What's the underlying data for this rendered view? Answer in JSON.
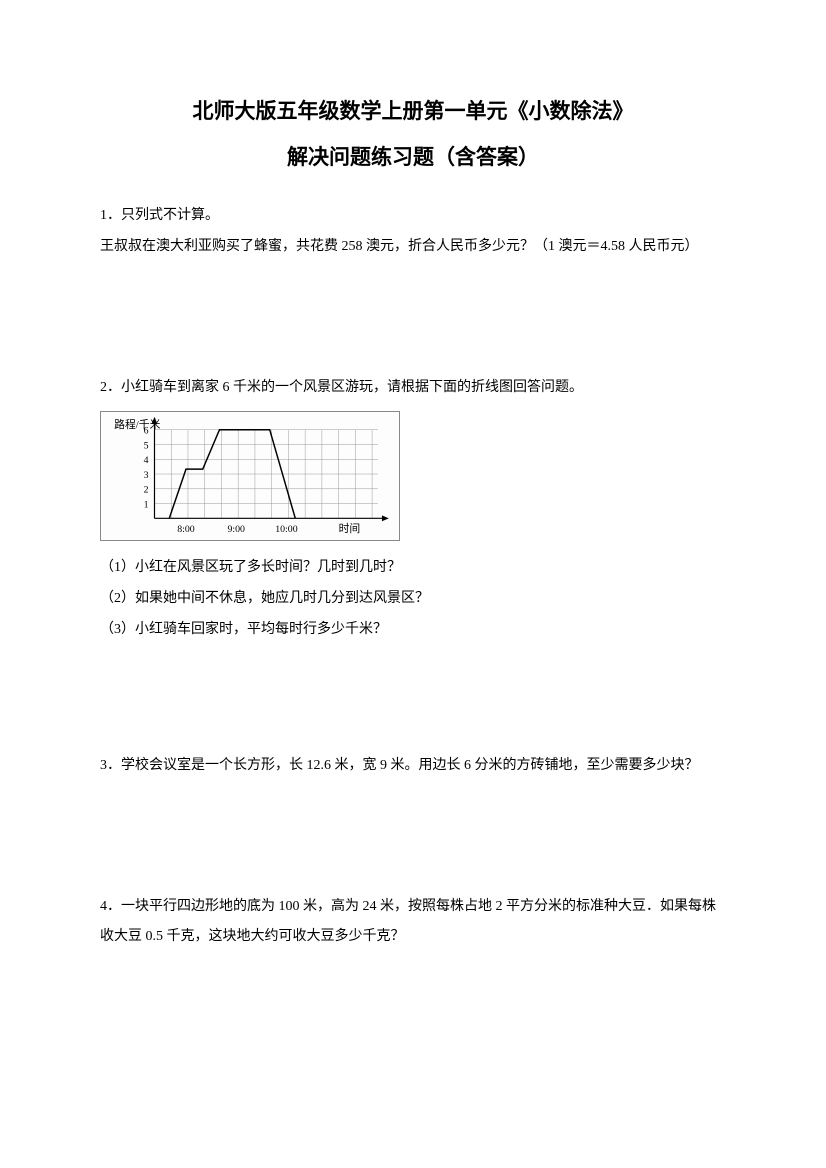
{
  "title": {
    "line1": "北师大版五年级数学上册第一单元《小数除法》",
    "line2": "解决问题练习题（含答案）"
  },
  "q1": {
    "header": "1．只列式不计算。",
    "body": "王叔叔在澳大利亚购买了蜂蜜，共花费 258 澳元，折合人民币多少元？（1 澳元＝4.58 人民币元）"
  },
  "q2": {
    "header": "2．小红骑车到离家 6 千米的一个风景区游玩，请根据下面的折线图回答问题。",
    "sub1": "（1）小红在风景区玩了多长时间？几时到几时？",
    "sub2": "（2）如果她中间不休息，她应几时几分到达风景区？",
    "sub3": "（3）小红骑车回家时，平均每时行多少千米？"
  },
  "q3": {
    "body": "3．学校会议室是一个长方形，长 12.6 米，宽 9 米。用边长 6 分米的方砖铺地，至少需要多少块？"
  },
  "q4": {
    "body": "4．一块平行四边形地的底为 100 米，高为 24 米，按照每株占地 2 平方分米的标准种大豆．如果每株收大豆 0.5 千克，这块地大约可收大豆多少千克？"
  },
  "chart": {
    "y_axis_label": "路程/千米",
    "x_axis_label": "时间",
    "x_ticks": [
      "8:00",
      "9:00",
      "10:00"
    ],
    "y_ticks": [
      "1",
      "2",
      "3",
      "4",
      "5",
      "6"
    ],
    "y_max": 6,
    "grid_color": "#999999",
    "line_color": "#000000",
    "axis_color": "#000000",
    "text_color": "#000000",
    "label_fontsize": 11,
    "tick_fontsize": 10,
    "line_width": 1.5,
    "data_points": [
      {
        "x": 68,
        "y": 108
      },
      {
        "x": 85,
        "y": 58
      },
      {
        "x": 102,
        "y": 58
      },
      {
        "x": 119,
        "y": 18
      },
      {
        "x": 170,
        "y": 18
      },
      {
        "x": 196,
        "y": 108
      }
    ],
    "grid": {
      "x_start": 53,
      "x_end": 280,
      "x_step": 17,
      "y_start": 18,
      "y_end": 108,
      "y_step": 15
    },
    "x_tick_positions": [
      85,
      136,
      187
    ]
  }
}
